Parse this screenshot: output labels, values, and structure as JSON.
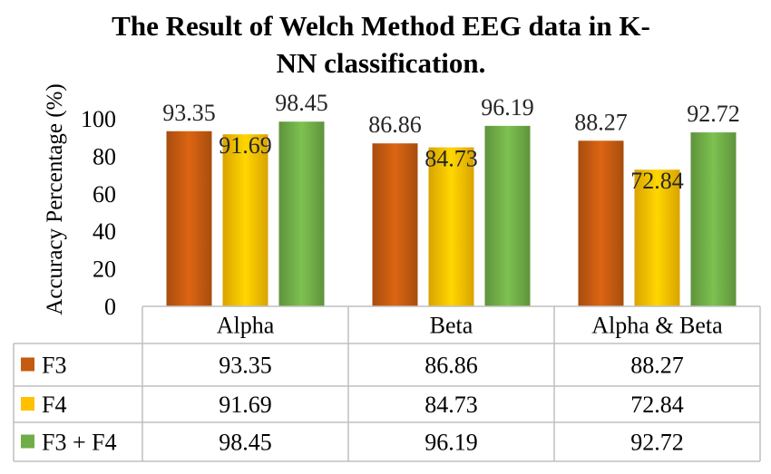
{
  "chart_data": {
    "type": "bar",
    "title": "The Result of Welch  Method EEG data in K-NN classification.",
    "title_line1": "The Result of Welch  Method EEG data in K-",
    "title_line2": "NN classification.",
    "xlabel": "",
    "ylabel": "Accuracy Percentage (%)",
    "ylim": [
      0,
      100
    ],
    "yticks": [
      0,
      20,
      40,
      60,
      80,
      100
    ],
    "ytick_labels": [
      "0",
      "20",
      "40",
      "60",
      "80",
      "100"
    ],
    "grid": false,
    "legend": "data-table",
    "categories": [
      "Alpha",
      "Beta",
      "Alpha & Beta"
    ],
    "series": [
      {
        "name": "F3",
        "values": [
          93.35,
          86.86,
          88.27
        ],
        "value_labels": [
          "93.35",
          "86.86",
          "88.27"
        ],
        "color": "#C55A11"
      },
      {
        "name": "F4",
        "values": [
          91.69,
          84.73,
          72.84
        ],
        "value_labels": [
          "91.69",
          "84.73",
          "72.84"
        ],
        "color": "#FFC000"
      },
      {
        "name": "F3 + F4",
        "values": [
          98.45,
          96.19,
          92.72
        ],
        "value_labels": [
          "98.45",
          "96.19",
          "92.72"
        ],
        "color": "#70AD47"
      }
    ]
  }
}
